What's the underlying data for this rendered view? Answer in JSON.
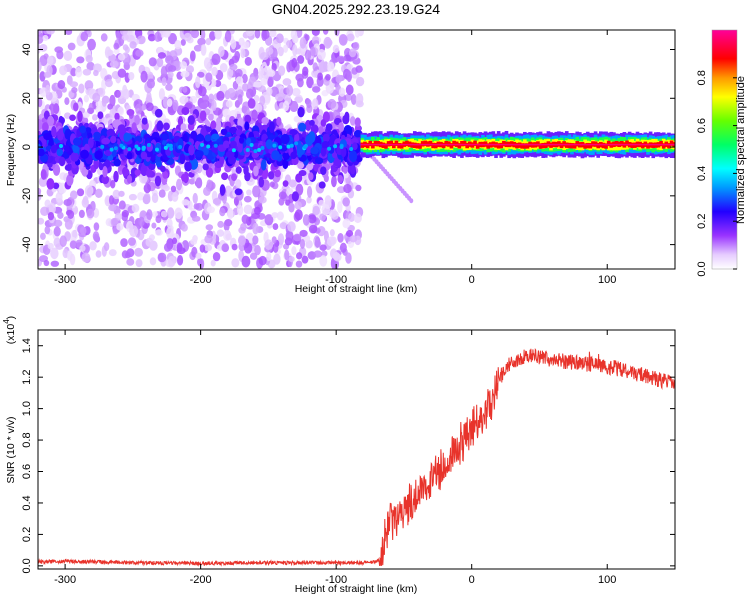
{
  "chart_data": [
    {
      "type": "heatmap",
      "title": "GN04.2025.292.23.19.G24",
      "xlabel": "Height of straight line (km)",
      "ylabel": "Frequency (Hz)",
      "xlim": [
        -320,
        150
      ],
      "ylim": [
        -50,
        48
      ],
      "xticks": [
        "-300",
        "-200",
        "-100",
        "0",
        "100"
      ],
      "yticks": [
        "40",
        "20",
        "0",
        "-20",
        "-40"
      ],
      "colorbar": {
        "label": "Normalized spectral amplitude",
        "range": [
          0,
          1
        ],
        "ticks": [
          "0.0",
          "0.2",
          "0.4",
          "0.6",
          "0.8"
        ]
      },
      "bands": [
        {
          "name": "scattered region",
          "x": [
            -320,
            -82
          ],
          "center_freq_hz": 0,
          "core_halfwidth_hz": 8,
          "scatter_halfwidth_hz": 48,
          "peak_amplitude": 0.35
        },
        {
          "name": "narrow line",
          "x": [
            -82,
            150
          ],
          "center_freq_hz": 1,
          "core_halfwidth_hz": 1.5,
          "peak_amplitude": 1.0
        }
      ],
      "grid": false
    },
    {
      "type": "line",
      "xlabel": "Height of straight line (km)",
      "ylabel": "SNR (10 * v/v)",
      "y_scale_label": "(x10",
      "y_scale_exponent": "4",
      "xlim": [
        -320,
        150
      ],
      "ylim": [
        -0.02,
        1.5
      ],
      "xticks": [
        "-300",
        "-200",
        "-100",
        "0",
        "100"
      ],
      "yticks": [
        "0.0",
        "0.2",
        "0.4",
        "0.6",
        "0.8",
        "1.0",
        "1.2",
        "1.4"
      ],
      "grid": false,
      "series": [
        {
          "color": "#e8332b",
          "x": [
            -320,
            -300,
            -250,
            -200,
            -150,
            -100,
            -80,
            -68,
            -63,
            -60,
            -55,
            -50,
            -45,
            -40,
            -35,
            -30,
            -25,
            -20,
            -15,
            -10,
            -5,
            0,
            5,
            10,
            15,
            20,
            25,
            30,
            35,
            40,
            50,
            60,
            70,
            80,
            90,
            100,
            110,
            120,
            130,
            140,
            150
          ],
          "values": [
            0.025,
            0.03,
            0.02,
            0.015,
            0.02,
            0.02,
            0.02,
            0.03,
            0.22,
            0.3,
            0.28,
            0.35,
            0.4,
            0.45,
            0.5,
            0.55,
            0.6,
            0.65,
            0.7,
            0.75,
            0.82,
            0.88,
            0.92,
            0.98,
            1.05,
            1.18,
            1.26,
            1.3,
            1.32,
            1.34,
            1.33,
            1.31,
            1.3,
            1.29,
            1.28,
            1.27,
            1.25,
            1.23,
            1.2,
            1.18,
            1.16
          ]
        }
      ]
    }
  ]
}
